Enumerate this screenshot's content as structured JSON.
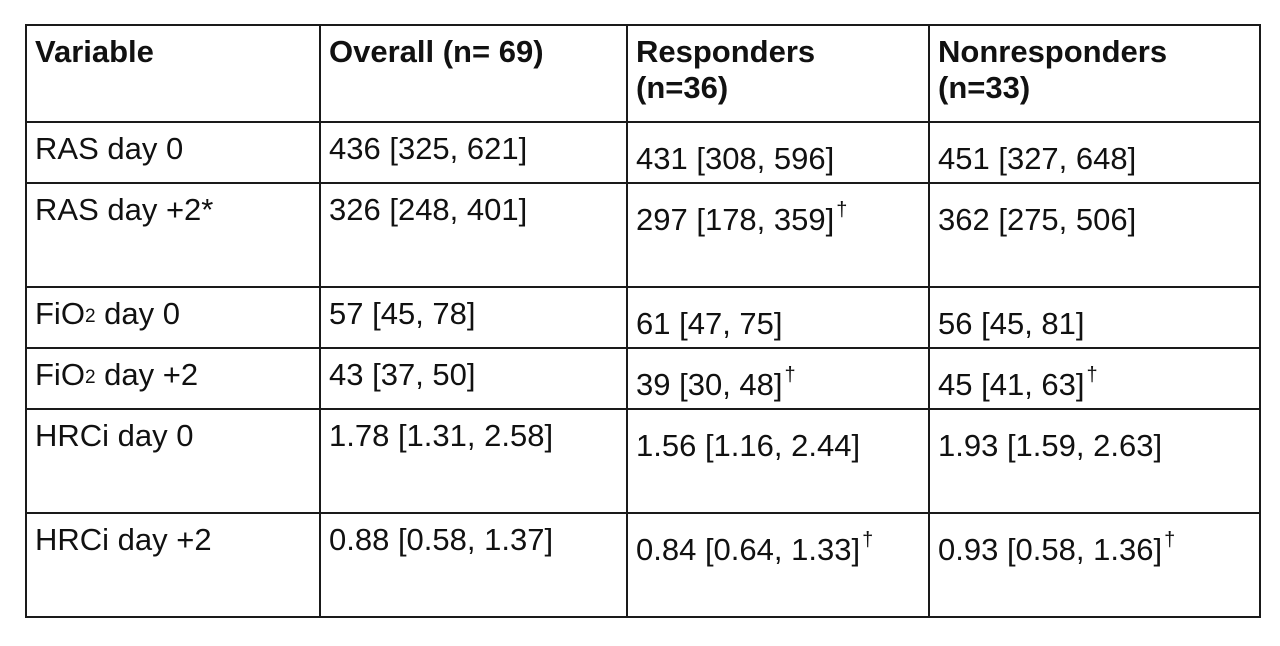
{
  "table": {
    "headers": {
      "variable": "Variable",
      "overall": "Overall (n= 69)",
      "responders_line1": "Responders",
      "responders_line2": "(n=36)",
      "nonresponders_line1": "Nonresponders",
      "nonresponders_line2": "(n=33)"
    },
    "rows": [
      {
        "label": "RAS day 0",
        "overall": "436 [325, 621]",
        "responders": "431 [308, 596]",
        "responders_mark": "",
        "nonresponders": "451 [327, 648]",
        "nonresponders_mark": ""
      },
      {
        "label": "RAS day +2*",
        "overall": "326 [248, 401]",
        "responders": "297 [178, 359]",
        "responders_mark": "†",
        "nonresponders": "362 [275, 506]",
        "nonresponders_mark": ""
      },
      {
        "label_prefix": "FiO",
        "label_sub": "2",
        "label_suffix": " day 0",
        "overall": "57 [45, 78]",
        "responders": "61 [47, 75]",
        "responders_mark": "",
        "nonresponders": "56 [45, 81]",
        "nonresponders_mark": ""
      },
      {
        "label_prefix": "FiO",
        "label_sub": "2",
        "label_suffix": " day +2",
        "overall": "43 [37, 50]",
        "responders": "39 [30, 48]",
        "responders_mark": "†",
        "nonresponders": "45 [41, 63]",
        "nonresponders_mark": "†"
      },
      {
        "label": "HRCi day 0",
        "overall": "1.78 [1.31, 2.58]",
        "responders": "1.56 [1.16, 2.44]",
        "responders_mark": "",
        "nonresponders": "1.93 [1.59, 2.63]",
        "nonresponders_mark": ""
      },
      {
        "label": "HRCi day +2",
        "overall": "0.88 [0.58, 1.37]",
        "responders": "0.84 [0.64, 1.33]",
        "responders_mark": "†",
        "nonresponders": "0.93 [0.58, 1.36]",
        "nonresponders_mark": "†"
      }
    ]
  }
}
